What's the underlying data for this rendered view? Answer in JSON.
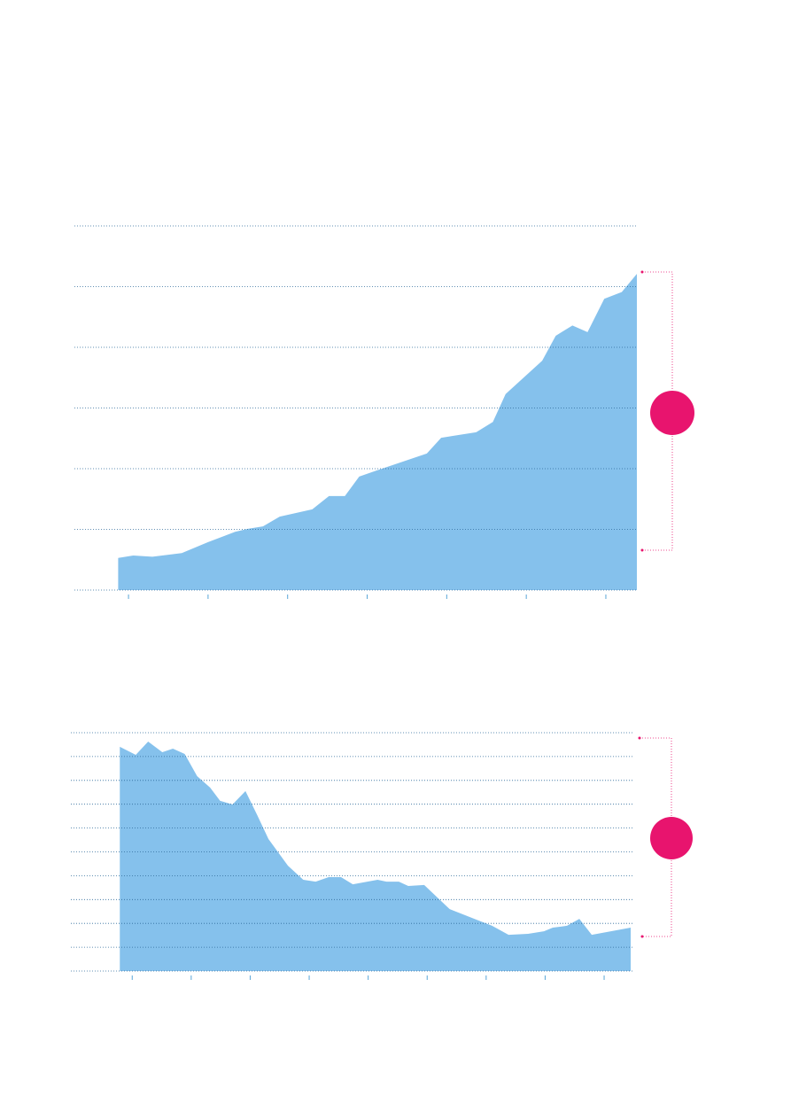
{
  "chart_data": [
    {
      "type": "area",
      "color": "#85c1ec",
      "grid": true,
      "x": [
        -0.13,
        0.06,
        0.3,
        0.67,
        1.0,
        1.34,
        1.5,
        1.69,
        1.9,
        2.31,
        2.52,
        2.72,
        2.9,
        3.12,
        3.75,
        3.93,
        4.37,
        4.58,
        4.74,
        5.2,
        5.37,
        5.58,
        5.77,
        5.98,
        6.2,
        6.39
      ],
      "values": [
        0.53,
        0.57,
        0.55,
        0.61,
        0.79,
        0.96,
        1.01,
        1.05,
        1.21,
        1.33,
        1.55,
        1.55,
        1.87,
        1.97,
        2.25,
        2.51,
        2.6,
        2.77,
        3.23,
        3.78,
        4.19,
        4.36,
        4.25,
        4.8,
        4.91,
        5.21
      ],
      "xlim": [
        -0.68,
        6.39
      ],
      "xticks": [
        0,
        1,
        2,
        3,
        4,
        5,
        6
      ],
      "ylim": [
        0,
        6
      ],
      "yticks": [
        0,
        1,
        2,
        3,
        4,
        5,
        6
      ]
    },
    {
      "type": "area",
      "color": "#85c1ec",
      "grid": true,
      "x": [
        -0.21,
        0.06,
        0.27,
        0.51,
        0.69,
        0.89,
        1.1,
        1.32,
        1.49,
        1.7,
        1.92,
        2.12,
        2.31,
        2.64,
        2.9,
        3.11,
        3.33,
        3.54,
        3.74,
        4.16,
        4.31,
        4.52,
        4.68,
        4.95,
        5.38,
        5.83,
        6.1,
        6.38,
        6.71,
        6.98,
        7.13,
        7.37,
        7.58,
        7.79,
        8.45
      ],
      "values": [
        9.41,
        9.07,
        9.63,
        9.18,
        9.33,
        9.11,
        8.18,
        7.7,
        7.14,
        6.99,
        7.55,
        6.54,
        5.54,
        4.42,
        3.83,
        3.75,
        3.94,
        3.94,
        3.64,
        3.83,
        3.75,
        3.75,
        3.57,
        3.61,
        2.6,
        2.16,
        1.9,
        1.52,
        1.56,
        1.67,
        1.82,
        1.9,
        2.19,
        1.52,
        1.82
      ],
      "xlim": [
        -1.04,
        8.48
      ],
      "xticks": [
        0,
        1,
        2,
        3,
        4,
        5,
        6,
        7,
        8
      ],
      "ylim": [
        0,
        10
      ],
      "yticks": [
        0,
        1,
        2,
        3,
        4,
        5,
        6,
        7,
        8,
        9,
        10
      ]
    }
  ]
}
